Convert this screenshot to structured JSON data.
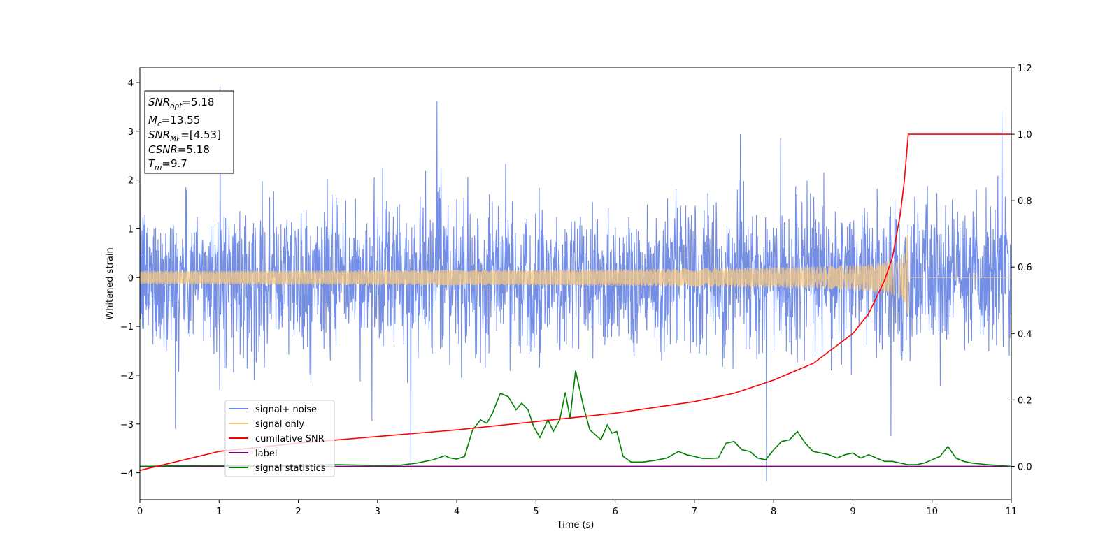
{
  "chart_data": {
    "type": "line",
    "xlabel": "Time (s)",
    "ylabel": "Whitened strain",
    "xlim": [
      0,
      11
    ],
    "ylim": [
      -4.55,
      4.3
    ],
    "y2lim": [
      -0.1,
      1.2
    ],
    "xticks": [
      0,
      1,
      2,
      3,
      4,
      5,
      6,
      7,
      8,
      9,
      10,
      11
    ],
    "yticks": [
      -4,
      -3,
      -2,
      -1,
      0,
      1,
      2,
      3,
      4
    ],
    "y2ticks": [
      "0.0",
      "0.2",
      "0.4",
      "0.6",
      "0.8",
      "1.0",
      "1.2"
    ],
    "y2tick_values": [
      0.0,
      0.2,
      0.4,
      0.6,
      0.8,
      1.0,
      1.2
    ],
    "grid": false,
    "legend_position": "lower-left",
    "series": [
      {
        "name": "signal+ noise",
        "color": "#6b88e6",
        "axis": "left",
        "description_values": {
          "std": 0.75,
          "approx_range": [
            -4.2,
            3.9
          ]
        },
        "notable_spikes": [
          [
            1.01,
            3.92
          ],
          [
            3.75,
            3.62
          ],
          [
            10.88,
            3.4
          ],
          [
            3.42,
            -3.85
          ],
          [
            7.91,
            -4.17
          ],
          [
            0.45,
            -3.1
          ],
          [
            9.48,
            -3.25
          ]
        ]
      },
      {
        "name": "signal only",
        "color": "#f5c882",
        "axis": "left",
        "merger_time": 9.7,
        "peak_amplitude": 0.95
      },
      {
        "name": "cumilative SNR",
        "color": "#ff0000",
        "axis": "right",
        "x": [
          0,
          1,
          2,
          3,
          4,
          5,
          6,
          7,
          7.5,
          8,
          8.5,
          9,
          9.2,
          9.4,
          9.5,
          9.6,
          9.65,
          9.7,
          11
        ],
        "values": [
          -0.012,
          0.045,
          0.07,
          0.09,
          0.11,
          0.135,
          0.16,
          0.195,
          0.22,
          0.26,
          0.31,
          0.4,
          0.46,
          0.56,
          0.63,
          0.76,
          0.86,
          1.0,
          1.0
        ]
      },
      {
        "name": "label",
        "color": "#800080",
        "axis": "right",
        "x": [
          0,
          11
        ],
        "values": [
          0,
          0
        ]
      },
      {
        "name": "signal statistics",
        "color": "#008000",
        "axis": "right",
        "x": [
          0,
          0.5,
          1,
          1.5,
          2,
          2.5,
          3,
          3.3,
          3.5,
          3.7,
          3.85,
          3.9,
          4.0,
          4.1,
          4.2,
          4.3,
          4.38,
          4.45,
          4.55,
          4.65,
          4.75,
          4.82,
          4.9,
          4.97,
          5.05,
          5.15,
          5.22,
          5.3,
          5.37,
          5.43,
          5.5,
          5.6,
          5.68,
          5.75,
          5.82,
          5.9,
          5.96,
          6.02,
          6.1,
          6.2,
          6.35,
          6.5,
          6.65,
          6.8,
          6.9,
          7.0,
          7.1,
          7.2,
          7.3,
          7.4,
          7.5,
          7.6,
          7.7,
          7.8,
          7.9,
          8.0,
          8.1,
          8.2,
          8.3,
          8.4,
          8.5,
          8.6,
          8.7,
          8.8,
          8.9,
          9.0,
          9.1,
          9.2,
          9.3,
          9.4,
          9.5,
          9.6,
          9.7,
          9.8,
          9.9,
          10.0,
          10.1,
          10.2,
          10.3,
          10.4,
          10.5,
          10.7,
          10.9,
          11
        ],
        "values": [
          0.0,
          0.002,
          0.003,
          0.002,
          0.004,
          0.005,
          0.003,
          0.004,
          0.01,
          0.02,
          0.032,
          0.026,
          0.022,
          0.03,
          0.11,
          0.14,
          0.13,
          0.16,
          0.22,
          0.21,
          0.17,
          0.19,
          0.17,
          0.12,
          0.087,
          0.14,
          0.106,
          0.14,
          0.223,
          0.145,
          0.288,
          0.18,
          0.11,
          0.095,
          0.08,
          0.125,
          0.1,
          0.105,
          0.03,
          0.013,
          0.013,
          0.018,
          0.025,
          0.045,
          0.035,
          0.03,
          0.024,
          0.024,
          0.025,
          0.07,
          0.075,
          0.05,
          0.045,
          0.025,
          0.02,
          0.05,
          0.075,
          0.08,
          0.105,
          0.07,
          0.045,
          0.04,
          0.035,
          0.025,
          0.035,
          0.04,
          0.025,
          0.035,
          0.025,
          0.015,
          0.015,
          0.01,
          0.005,
          0.005,
          0.01,
          0.02,
          0.03,
          0.06,
          0.025,
          0.015,
          0.01,
          0.005,
          0.002,
          0.0
        ]
      }
    ],
    "annotation_box": {
      "lines": [
        {
          "base": "SNR",
          "sub": "opt",
          "rest": "=5.18"
        },
        {
          "base": "M",
          "sub": "c",
          "rest": "=13.55"
        },
        {
          "base": "SNR",
          "sub": "MF",
          "rest": "=[4.53]"
        },
        {
          "base": "CSNR",
          "sub": "",
          "rest": "=5.18"
        },
        {
          "base": "T",
          "sub": "m",
          "rest": "=9.7"
        }
      ]
    }
  }
}
